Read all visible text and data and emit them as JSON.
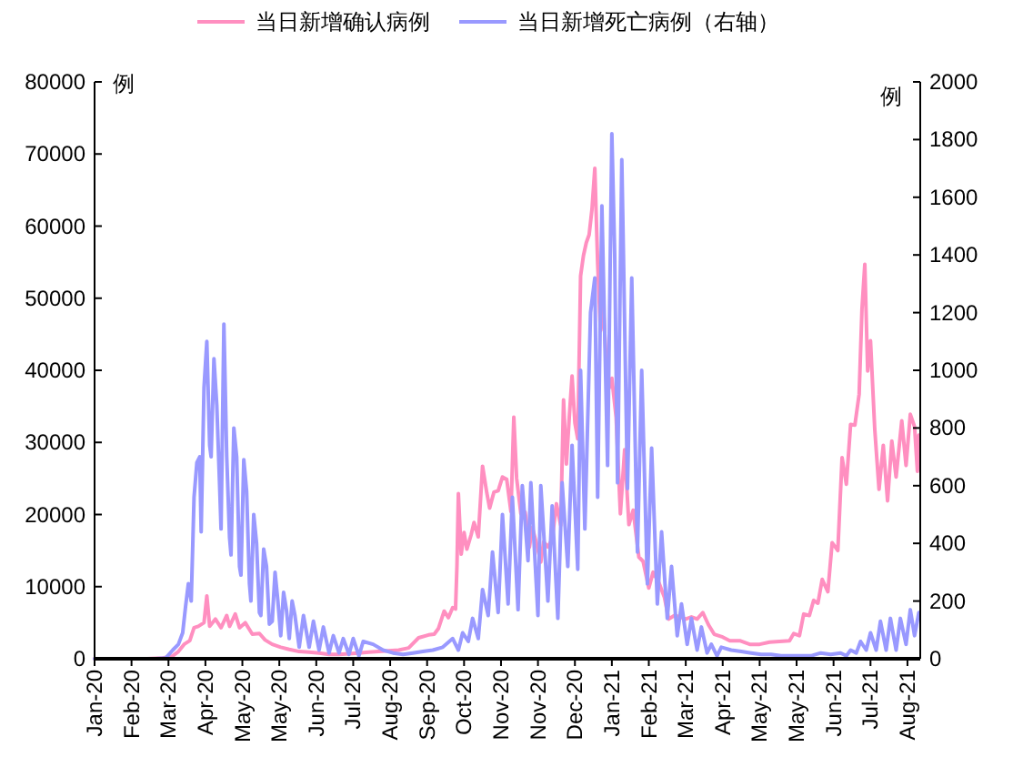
{
  "chart_data": {
    "type": "line",
    "ylabel": "例",
    "y2label": "例",
    "legend": "top",
    "xlim": [
      "2020-01-22",
      "2021-08-25"
    ],
    "xticks": [
      {
        "value": "2020-01-22",
        "label": "Jan-20"
      },
      {
        "value": "2020-02-17",
        "label": "Feb-20"
      },
      {
        "value": "2020-03-14",
        "label": "Mar-20"
      },
      {
        "value": "2020-04-09",
        "label": "Apr-20"
      },
      {
        "value": "2020-05-05",
        "label": "May-20"
      },
      {
        "value": "2020-05-31",
        "label": "May-20"
      },
      {
        "value": "2020-06-26",
        "label": "Jun-20"
      },
      {
        "value": "2020-07-22",
        "label": "Jul-20"
      },
      {
        "value": "2020-08-17",
        "label": "Aug-20"
      },
      {
        "value": "2020-09-12",
        "label": "Sep-20"
      },
      {
        "value": "2020-10-08",
        "label": "Oct-20"
      },
      {
        "value": "2020-11-03",
        "label": "Nov-20"
      },
      {
        "value": "2020-11-29",
        "label": "Nov-20"
      },
      {
        "value": "2020-12-25",
        "label": "Dec-20"
      },
      {
        "value": "2021-01-20",
        "label": "Jan-21"
      },
      {
        "value": "2021-02-15",
        "label": "Feb-21"
      },
      {
        "value": "2021-03-13",
        "label": "Mar-21"
      },
      {
        "value": "2021-04-08",
        "label": "Apr-21"
      },
      {
        "value": "2021-05-04",
        "label": "May-21"
      },
      {
        "value": "2021-05-30",
        "label": "May-21"
      },
      {
        "value": "2021-06-25",
        "label": "Jun-21"
      },
      {
        "value": "2021-07-21",
        "label": "Jul-21"
      },
      {
        "value": "2021-08-16",
        "label": "Aug-21"
      }
    ],
    "ylim": [
      0,
      80000
    ],
    "yticks": [
      0,
      10000,
      20000,
      30000,
      40000,
      50000,
      60000,
      70000,
      80000
    ],
    "y2lim": [
      0,
      2000
    ],
    "y2ticks": [
      0,
      200,
      400,
      600,
      800,
      1000,
      1200,
      1400,
      1600,
      1800,
      2000
    ],
    "series": [
      {
        "name": "当日新增确认病例",
        "color": "#ff8fc0",
        "axis": "y",
        "x": [
          "2020-01-22",
          "2020-02-28",
          "2020-03-10",
          "2020-03-17",
          "2020-03-21",
          "2020-03-25",
          "2020-03-29",
          "2020-04-01",
          "2020-04-04",
          "2020-04-08",
          "2020-04-10",
          "2020-04-12",
          "2020-04-16",
          "2020-04-20",
          "2020-04-24",
          "2020-04-26",
          "2020-04-30",
          "2020-05-03",
          "2020-05-07",
          "2020-05-12",
          "2020-05-17",
          "2020-05-21",
          "2020-05-26",
          "2020-06-01",
          "2020-06-07",
          "2020-06-14",
          "2020-06-21",
          "2020-06-28",
          "2020-07-05",
          "2020-07-12",
          "2020-07-19",
          "2020-07-26",
          "2020-08-02",
          "2020-08-09",
          "2020-08-16",
          "2020-08-23",
          "2020-08-30",
          "2020-09-06",
          "2020-09-13",
          "2020-09-17",
          "2020-09-20",
          "2020-09-24",
          "2020-09-27",
          "2020-09-30",
          "2020-10-02",
          "2020-10-03",
          "2020-10-04",
          "2020-10-06",
          "2020-10-08",
          "2020-10-10",
          "2020-10-13",
          "2020-10-15",
          "2020-10-18",
          "2020-10-21",
          "2020-10-24",
          "2020-10-26",
          "2020-10-29",
          "2020-11-01",
          "2020-11-04",
          "2020-11-07",
          "2020-11-10",
          "2020-11-12",
          "2020-11-14",
          "2020-11-17",
          "2020-11-20",
          "2020-11-23",
          "2020-11-25",
          "2020-11-28",
          "2020-12-01",
          "2020-12-03",
          "2020-12-06",
          "2020-12-09",
          "2020-12-12",
          "2020-12-15",
          "2020-12-17",
          "2020-12-19",
          "2020-12-21",
          "2020-12-23",
          "2020-12-25",
          "2020-12-27",
          "2020-12-29",
          "2020-12-31",
          "2021-01-02",
          "2021-01-04",
          "2021-01-06",
          "2021-01-08",
          "2021-01-10",
          "2021-01-12",
          "2021-01-14",
          "2021-01-16",
          "2021-01-18",
          "2021-01-20",
          "2021-01-23",
          "2021-01-26",
          "2021-01-29",
          "2021-02-01",
          "2021-02-04",
          "2021-02-08",
          "2021-02-11",
          "2021-02-15",
          "2021-02-18",
          "2021-02-22",
          "2021-02-26",
          "2021-03-01",
          "2021-03-05",
          "2021-03-09",
          "2021-03-13",
          "2021-03-17",
          "2021-03-21",
          "2021-03-25",
          "2021-03-29",
          "2021-04-02",
          "2021-04-08",
          "2021-04-13",
          "2021-04-20",
          "2021-04-27",
          "2021-05-04",
          "2021-05-11",
          "2021-05-18",
          "2021-05-25",
          "2021-05-28",
          "2021-06-01",
          "2021-06-04",
          "2021-06-08",
          "2021-06-11",
          "2021-06-14",
          "2021-06-17",
          "2021-06-21",
          "2021-06-24",
          "2021-06-28",
          "2021-07-01",
          "2021-07-04",
          "2021-07-07",
          "2021-07-10",
          "2021-07-13",
          "2021-07-15",
          "2021-07-17",
          "2021-07-19",
          "2021-07-21",
          "2021-07-24",
          "2021-07-27",
          "2021-07-30",
          "2021-08-02",
          "2021-08-05",
          "2021-08-08",
          "2021-08-12",
          "2021-08-15",
          "2021-08-18",
          "2021-08-21",
          "2021-08-23",
          "2021-08-24"
        ],
        "values": [
          0,
          0,
          100,
          400,
          1000,
          2000,
          2500,
          4300,
          4500,
          5000,
          8700,
          4500,
          5500,
          4300,
          6000,
          4500,
          6200,
          4300,
          5000,
          3400,
          3500,
          2600,
          2000,
          1600,
          1300,
          1000,
          900,
          800,
          600,
          600,
          700,
          800,
          900,
          1000,
          1100,
          1200,
          1500,
          2900,
          3300,
          3400,
          4200,
          6600,
          5700,
          7100,
          6900,
          12900,
          22900,
          14500,
          17500,
          15200,
          17200,
          18900,
          16900,
          26700,
          23000,
          20900,
          23100,
          23300,
          25200,
          24900,
          20400,
          33500,
          25000,
          20100,
          20300,
          15500,
          18200,
          16000,
          13400,
          16200,
          15500,
          16600,
          21500,
          18500,
          35900,
          27000,
          33400,
          39200,
          32700,
          30500,
          53100,
          55900,
          57700,
          58800,
          62300,
          68000,
          54900,
          45500,
          48700,
          41300,
          37500,
          38900,
          33500,
          20100,
          29000,
          18600,
          20600,
          14100,
          13500,
          9800,
          12000,
          10600,
          8500,
          5500,
          6000,
          5800,
          5500,
          5800,
          5500,
          6400,
          4700,
          3400,
          3000,
          2500,
          2500,
          2000,
          2000,
          2300,
          2400,
          2500,
          3500,
          3200,
          6200,
          6000,
          8100,
          7700,
          11000,
          9300,
          16100,
          15000,
          27900,
          24200,
          32500,
          32400,
          36700,
          48500,
          54700,
          39900,
          44100,
          31800,
          23500,
          29600,
          21900,
          30200,
          25200,
          33000,
          26800,
          33900,
          32200,
          26000,
          31000
        ]
      },
      {
        "name": "当日新增死亡病例（右轴）",
        "color": "#9999ff",
        "axis": "y2",
        "x": [
          "2020-01-22",
          "2020-03-05",
          "2020-03-12",
          "2020-03-17",
          "2020-03-21",
          "2020-03-24",
          "2020-03-26",
          "2020-03-28",
          "2020-03-30",
          "2020-04-01",
          "2020-04-03",
          "2020-04-05",
          "2020-04-06",
          "2020-04-08",
          "2020-04-10",
          "2020-04-12",
          "2020-04-13",
          "2020-04-15",
          "2020-04-17",
          "2020-04-19",
          "2020-04-20",
          "2020-04-22",
          "2020-04-24",
          "2020-04-26",
          "2020-04-27",
          "2020-04-29",
          "2020-05-01",
          "2020-05-03",
          "2020-05-04",
          "2020-05-06",
          "2020-05-08",
          "2020-05-10",
          "2020-05-11",
          "2020-05-13",
          "2020-05-15",
          "2020-05-17",
          "2020-05-18",
          "2020-05-20",
          "2020-05-22",
          "2020-05-24",
          "2020-05-26",
          "2020-05-28",
          "2020-05-30",
          "2020-06-01",
          "2020-06-03",
          "2020-06-05",
          "2020-06-07",
          "2020-06-09",
          "2020-06-11",
          "2020-06-14",
          "2020-06-17",
          "2020-06-21",
          "2020-06-24",
          "2020-06-28",
          "2020-07-01",
          "2020-07-05",
          "2020-07-08",
          "2020-07-12",
          "2020-07-15",
          "2020-07-19",
          "2020-07-22",
          "2020-07-26",
          "2020-07-29",
          "2020-08-05",
          "2020-08-12",
          "2020-08-19",
          "2020-08-26",
          "2020-09-02",
          "2020-09-09",
          "2020-09-16",
          "2020-09-23",
          "2020-09-30",
          "2020-10-04",
          "2020-10-07",
          "2020-10-11",
          "2020-10-14",
          "2020-10-18",
          "2020-10-21",
          "2020-10-25",
          "2020-10-28",
          "2020-11-01",
          "2020-11-04",
          "2020-11-08",
          "2020-11-11",
          "2020-11-15",
          "2020-11-18",
          "2020-11-22",
          "2020-11-24",
          "2020-11-29",
          "2020-12-01",
          "2020-12-06",
          "2020-12-09",
          "2020-12-13",
          "2020-12-16",
          "2020-12-20",
          "2020-12-23",
          "2020-12-27",
          "2020-12-29",
          "2021-01-01",
          "2021-01-05",
          "2021-01-08",
          "2021-01-10",
          "2021-01-13",
          "2021-01-17",
          "2021-01-20",
          "2021-01-22",
          "2021-01-24",
          "2021-01-27",
          "2021-01-31",
          "2021-02-03",
          "2021-02-07",
          "2021-02-10",
          "2021-02-14",
          "2021-02-17",
          "2021-02-21",
          "2021-02-24",
          "2021-02-28",
          "2021-03-03",
          "2021-03-07",
          "2021-03-10",
          "2021-03-14",
          "2021-03-17",
          "2021-03-21",
          "2021-03-24",
          "2021-03-28",
          "2021-03-31",
          "2021-04-04",
          "2021-04-07",
          "2021-04-14",
          "2021-04-21",
          "2021-04-28",
          "2021-05-05",
          "2021-05-12",
          "2021-05-19",
          "2021-05-26",
          "2021-06-02",
          "2021-06-09",
          "2021-06-16",
          "2021-06-23",
          "2021-06-30",
          "2021-07-04",
          "2021-07-07",
          "2021-07-11",
          "2021-07-14",
          "2021-07-18",
          "2021-07-21",
          "2021-07-25",
          "2021-07-28",
          "2021-08-01",
          "2021-08-04",
          "2021-08-08",
          "2021-08-11",
          "2021-08-15",
          "2021-08-18",
          "2021-08-21",
          "2021-08-24"
        ],
        "values": [
          0,
          0,
          2,
          30,
          50,
          90,
          180,
          260,
          200,
          560,
          680,
          700,
          440,
          940,
          1100,
          740,
          700,
          1040,
          880,
          600,
          450,
          1160,
          700,
          420,
          360,
          800,
          700,
          320,
          290,
          690,
          580,
          260,
          200,
          500,
          400,
          160,
          150,
          380,
          320,
          120,
          130,
          300,
          200,
          80,
          230,
          170,
          70,
          200,
          150,
          40,
          150,
          40,
          130,
          30,
          110,
          20,
          80,
          20,
          70,
          15,
          70,
          10,
          60,
          50,
          30,
          20,
          15,
          20,
          25,
          30,
          40,
          70,
          30,
          90,
          60,
          140,
          70,
          240,
          150,
          370,
          160,
          500,
          190,
          560,
          170,
          600,
          340,
          610,
          150,
          600,
          200,
          530,
          140,
          610,
          320,
          740,
          310,
          1000,
          450,
          1200,
          1320,
          560,
          1570,
          670,
          1820,
          1400,
          610,
          1730,
          590,
          1320,
          370,
          1000,
          260,
          730,
          190,
          440,
          140,
          320,
          80,
          190,
          50,
          140,
          30,
          110,
          20,
          50,
          10,
          40,
          30,
          25,
          20,
          15,
          15,
          10,
          10,
          10,
          10,
          20,
          15,
          20,
          10,
          30,
          20,
          60,
          30,
          90,
          30,
          130,
          30,
          140,
          30,
          140,
          50,
          170,
          80,
          160
        ]
      }
    ]
  }
}
